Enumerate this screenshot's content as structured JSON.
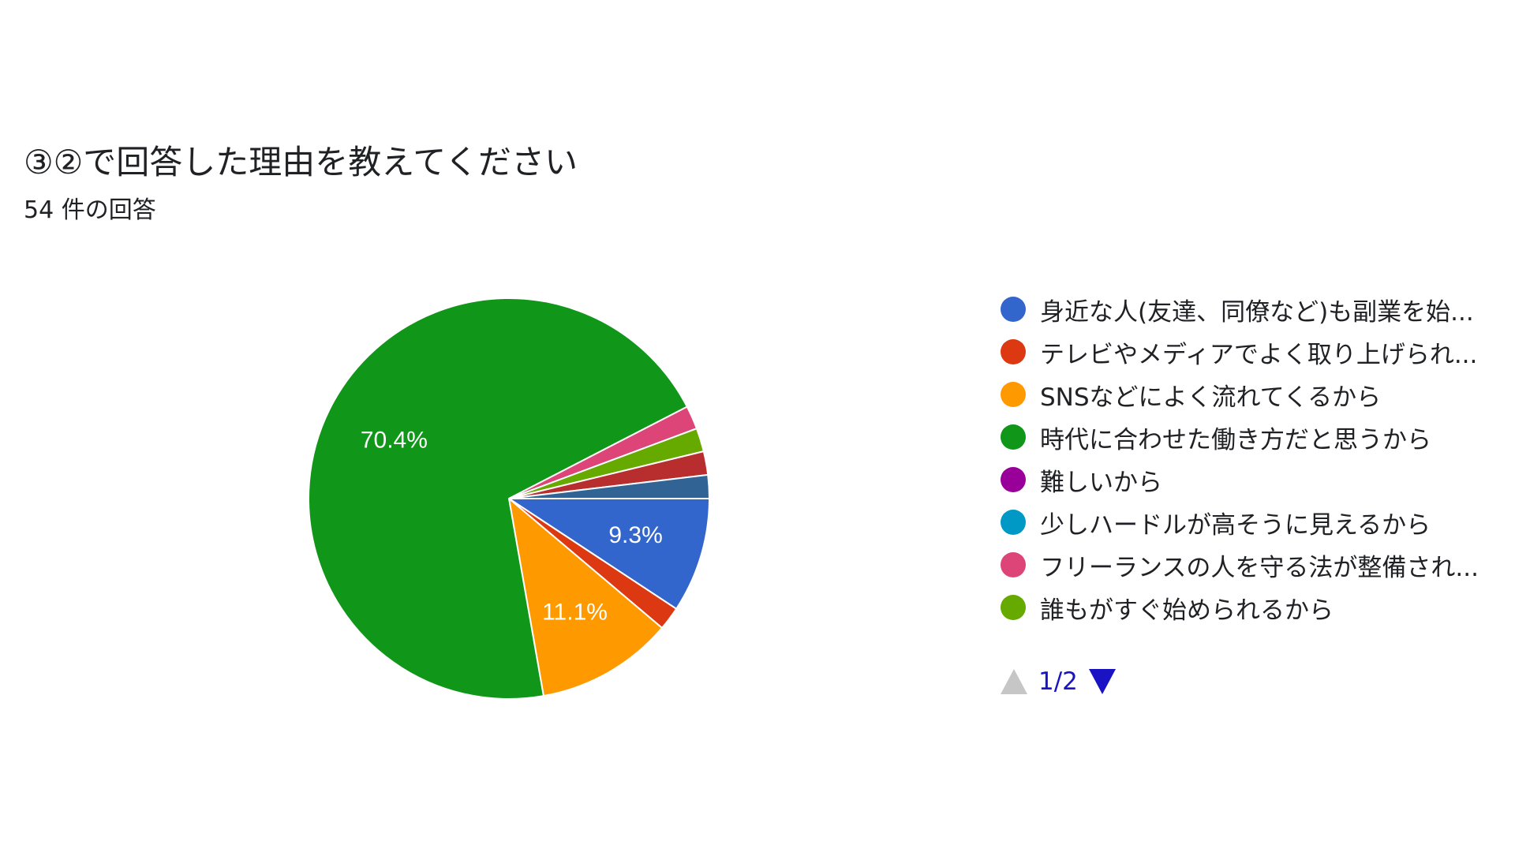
{
  "header": {
    "title": "③②で回答した理由を教えてください",
    "subtitle": "54 件の回答"
  },
  "chart_data": {
    "type": "pie",
    "title": "③②で回答した理由を教えてください",
    "total_responses": 54,
    "slices": [
      {
        "label": "身近な人(友達、同僚など)も副業を始...",
        "value": 9.3,
        "percent_label": "9.3%",
        "color": "#3366cc"
      },
      {
        "label": "テレビやメディアでよく取り上げられ...",
        "value": 1.9,
        "percent_label": "",
        "color": "#dc3912"
      },
      {
        "label": "SNSなどによく流れてくるから",
        "value": 11.1,
        "percent_label": "11.1%",
        "color": "#ff9900"
      },
      {
        "label": "時代に合わせた働き方だと思うから",
        "value": 70.4,
        "percent_label": "70.4%",
        "color": "#109618"
      },
      {
        "label": "フリーランスの人を守る法が整備され...",
        "value": 1.9,
        "percent_label": "",
        "color": "#dd4477"
      },
      {
        "label": "誰もがすぐ始められるから",
        "value": 1.9,
        "percent_label": "",
        "color": "#66aa00"
      },
      {
        "label": "",
        "value": 1.9,
        "percent_label": "",
        "color": "#b82e2e"
      },
      {
        "label": "",
        "value": 1.9,
        "percent_label": "",
        "color": "#316395"
      }
    ],
    "legend": {
      "position": "right",
      "items": [
        {
          "label": "身近な人(友達、同僚など)も副業を始...",
          "color": "#3366cc"
        },
        {
          "label": "テレビやメディアでよく取り上げられ...",
          "color": "#dc3912"
        },
        {
          "label": "SNSなどによく流れてくるから",
          "color": "#ff9900"
        },
        {
          "label": "時代に合わせた働き方だと思うから",
          "color": "#109618"
        },
        {
          "label": "難しいから",
          "color": "#990099"
        },
        {
          "label": "少しハードルが高そうに見えるから",
          "color": "#0099c6"
        },
        {
          "label": "フリーランスの人を守る法が整備され...",
          "color": "#dd4477"
        },
        {
          "label": "誰もがすぐ始められるから",
          "color": "#66aa00"
        }
      ]
    }
  },
  "pager": {
    "label": "1/2",
    "up_icon": "triangle-up-icon",
    "down_icon": "triangle-down-icon"
  }
}
